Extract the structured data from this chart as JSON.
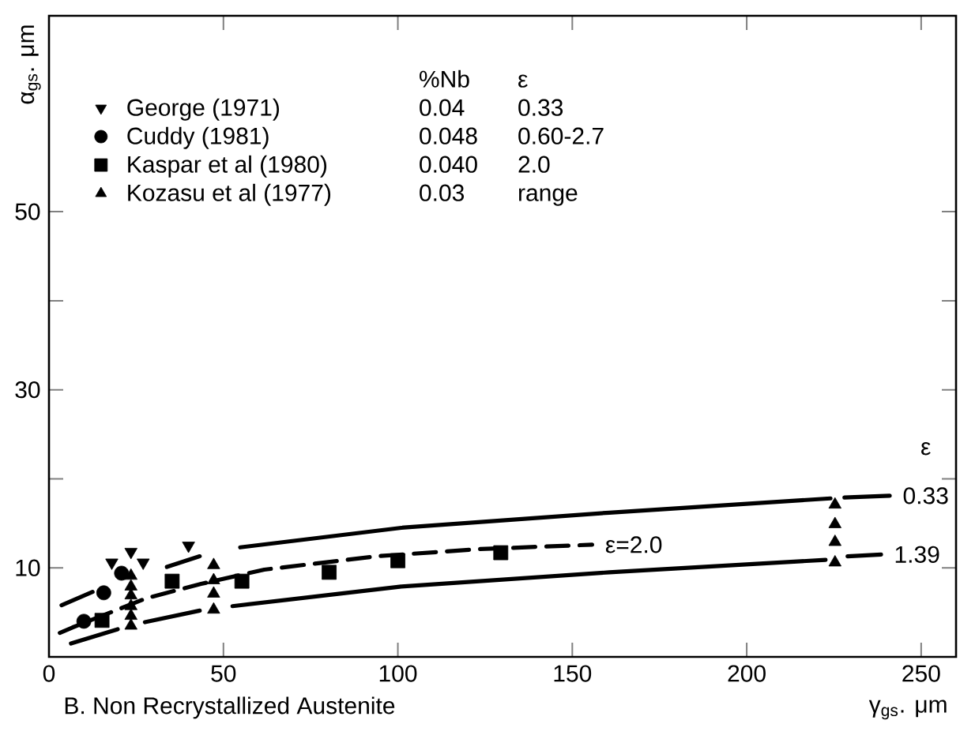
{
  "chart_data": {
    "type": "scatter",
    "xlabel": "γ$_{gs}$. μm",
    "ylabel": "α$_{gs}$. μm",
    "xlim": [
      0,
      260
    ],
    "ylim": [
      0,
      72
    ],
    "xticks": [
      0,
      50,
      100,
      150,
      200,
      250
    ],
    "yticks": [
      10,
      30,
      50
    ],
    "legend": "top left",
    "grid": false,
    "series": [
      {
        "name": "George (1971)",
        "marker": "triangle-down",
        "color": "#000000",
        "x": [
          18,
          23.5,
          27,
          40
        ],
        "values": [
          10.6,
          11.8,
          10.6,
          12.5
        ]
      },
      {
        "name": "Cuddy (1981)",
        "marker": "circle",
        "color": "#000000",
        "x": [
          10,
          15.7,
          20.8
        ],
        "values": [
          4.0,
          7.2,
          9.4
        ]
      },
      {
        "name": "Kaspar et al (1980)",
        "marker": "square",
        "color": "#000000",
        "x": [
          15.2,
          35.3,
          55.3,
          80.3,
          100,
          129.5
        ],
        "values": [
          4.1,
          8.5,
          8.5,
          9.5,
          10.8,
          11.7
        ]
      },
      {
        "name": "Kozasu et al (1977)",
        "marker": "triangle",
        "color": "#000000",
        "x": [
          23.5,
          23.5,
          23.5,
          23.5,
          23.5,
          23.5,
          47.2,
          47.2,
          47.2,
          47.2,
          225.3,
          225.3,
          225.3,
          225.3
        ],
        "values": [
          3.5,
          4.6,
          5.7,
          6.9,
          7.9,
          9.1,
          5.3,
          7.1,
          8.6,
          10.3,
          10.6,
          12.9,
          14.9,
          17.1
        ]
      },
      {
        "name": "0.33",
        "type": "line",
        "line_style": "solid",
        "color": "#000000",
        "x": [
          3.6,
          12.5,
          20,
          33.8,
          43.2,
          50,
          54.8,
          101,
          160.6,
          224,
          226,
          228,
          241
        ],
        "values": [
          5.8,
          7.3,
          null,
          10.1,
          11.3,
          null,
          12.3,
          14.5,
          16.2,
          17.8,
          null,
          17.9,
          18.1
        ]
      },
      {
        "name": "1.39",
        "type": "line",
        "line_style": "solid",
        "color": "#000000",
        "x": [
          6.3,
          19.7,
          24,
          27.5,
          43.2,
          48,
          52.6,
          101,
          160.6,
          222.6,
          226,
          228.9,
          238.5
        ],
        "values": [
          1.5,
          3.1,
          null,
          3.9,
          5.2,
          null,
          5.7,
          7.9,
          9.5,
          10.9,
          null,
          11.3,
          11.5
        ]
      },
      {
        "name": "ε=2.0",
        "type": "line",
        "line_style": "dashed",
        "color": "#000000",
        "x": [
          3.1,
          6.7,
          28,
          43.6,
          61.7,
          94,
          123,
          155.7
        ],
        "values": [
          2.7,
          3.3,
          6.6,
          8.2,
          9.8,
          11.3,
          12.1,
          12.6
        ]
      }
    ],
    "annotations": [
      "%Nb",
      "ε",
      "0.04",
      "0.33",
      "0.048",
      "0.60-2.7",
      "0.040",
      "2.0",
      "0.03",
      "range",
      "ε",
      "B.   Non Recrystallized Austenite"
    ]
  }
}
